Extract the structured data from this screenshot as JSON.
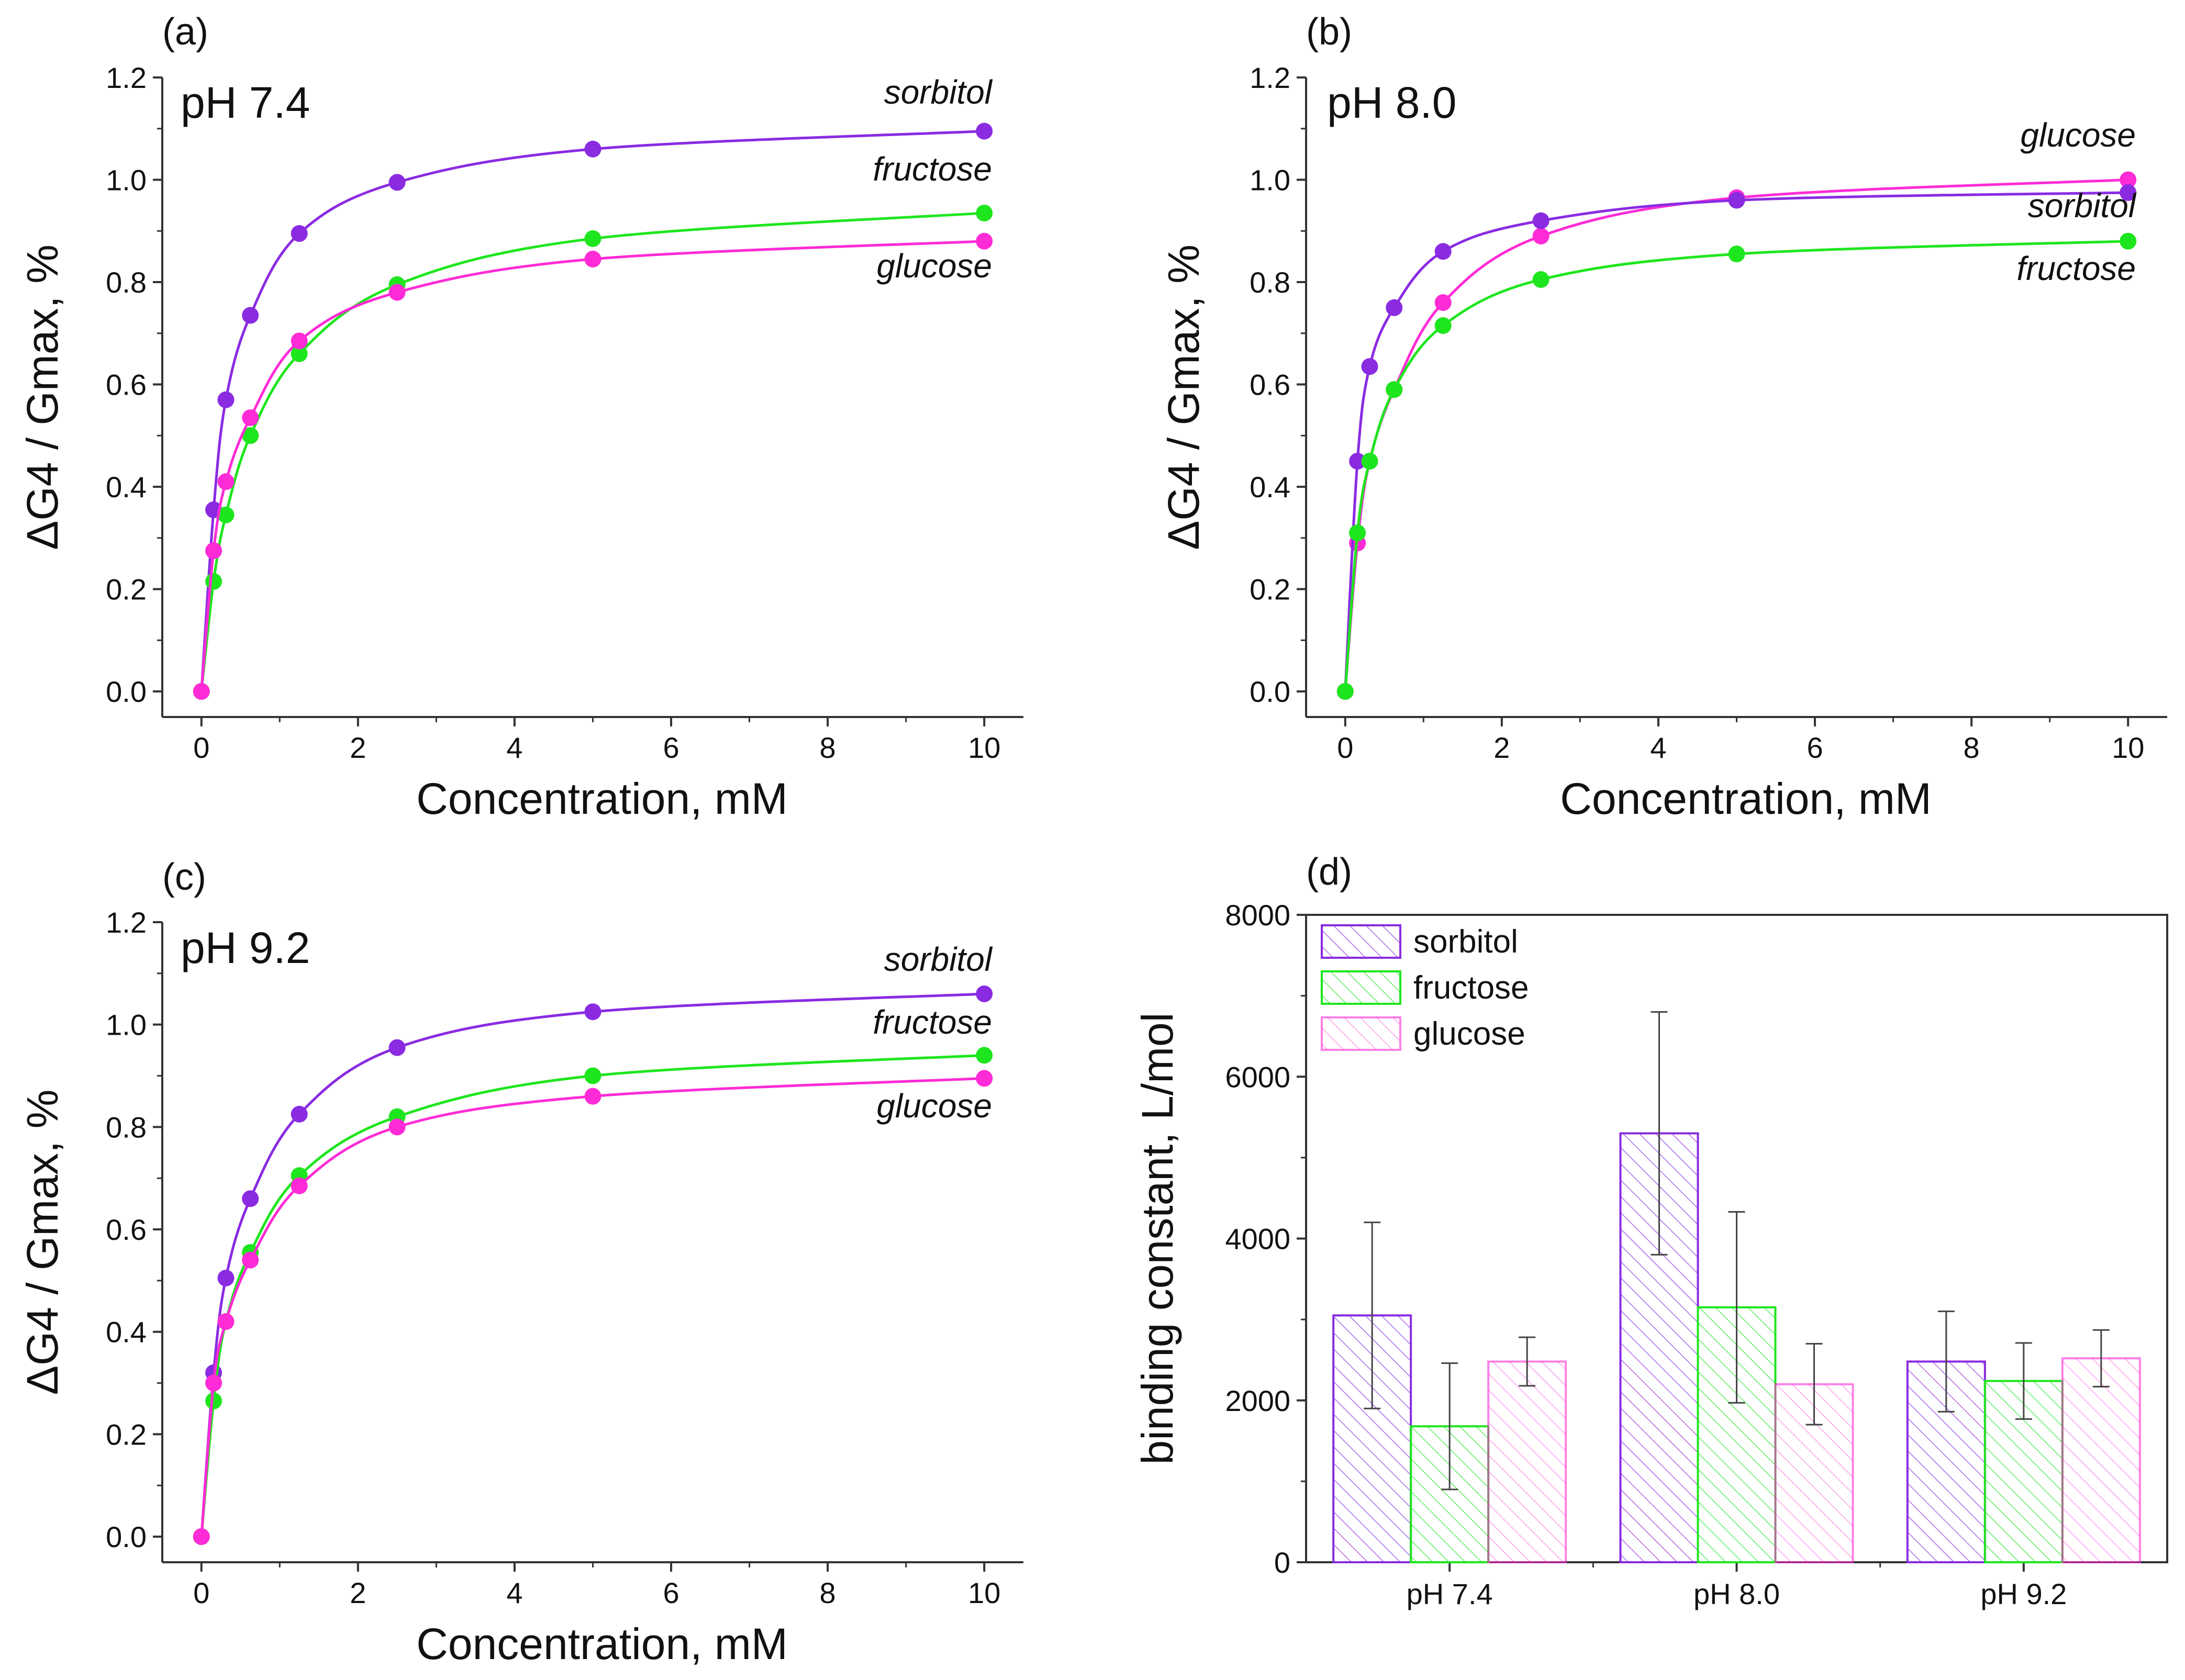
{
  "figure": {
    "panels": [
      {
        "label": "(a)",
        "ph_label": "pH 7.4"
      },
      {
        "label": "(b)",
        "ph_label": "pH 8.0"
      },
      {
        "label": "(c)",
        "ph_label": "pH 9.2"
      },
      {
        "label": "(d)"
      }
    ]
  },
  "chart_data": [
    {
      "type": "scatter",
      "panel": "(a)",
      "title": "pH 7.4",
      "xlabel": "Concentration, mM",
      "ylabel": "ΔG4 / Gmax, %",
      "xlim": [
        -0.5,
        10.5
      ],
      "ylim": [
        -0.05,
        1.2
      ],
      "xticks": [
        "0",
        "2",
        "4",
        "6",
        "8",
        "10"
      ],
      "yticks": [
        "0.0",
        "0.2",
        "0.4",
        "0.6",
        "0.8",
        "1.0",
        "1.2"
      ],
      "x": [
        0,
        0.156,
        0.3125,
        0.625,
        1.25,
        2.5,
        5,
        10
      ],
      "series": [
        {
          "name": "sorbitol",
          "color": "#8a2be2",
          "values": [
            0,
            0.355,
            0.57,
            0.735,
            0.895,
            0.995,
            1.06,
            1.095
          ]
        },
        {
          "name": "fructose",
          "color": "#1ee61e",
          "values": [
            0,
            0.215,
            0.345,
            0.5,
            0.66,
            0.795,
            0.885,
            0.935
          ]
        },
        {
          "name": "glucose",
          "color": "#ff2bd6",
          "values": [
            0,
            0.275,
            0.41,
            0.535,
            0.685,
            0.78,
            0.845,
            0.88
          ]
        }
      ]
    },
    {
      "type": "scatter",
      "panel": "(b)",
      "title": "pH 8.0",
      "xlabel": "Concentration, mM",
      "ylabel": "ΔG4 / Gmax, %",
      "xlim": [
        -0.5,
        10.5
      ],
      "ylim": [
        -0.05,
        1.2
      ],
      "xticks": [
        "0",
        "2",
        "4",
        "6",
        "8",
        "10"
      ],
      "yticks": [
        "0.0",
        "0.2",
        "0.4",
        "0.6",
        "0.8",
        "1.0",
        "1.2"
      ],
      "x": [
        0,
        0.156,
        0.3125,
        0.625,
        1.25,
        2.5,
        5,
        10
      ],
      "series": [
        {
          "name": "glucose",
          "color": "#ff2bd6",
          "values": [
            0,
            0.29,
            0.45,
            0.59,
            0.76,
            0.89,
            0.965,
            1.0
          ]
        },
        {
          "name": "sorbitol",
          "color": "#8a2be2",
          "values": [
            0,
            0.45,
            0.635,
            0.75,
            0.86,
            0.92,
            0.96,
            0.975
          ]
        },
        {
          "name": "fructose",
          "color": "#1ee61e",
          "values": [
            0,
            0.31,
            0.45,
            0.59,
            0.715,
            0.805,
            0.855,
            0.88
          ]
        }
      ]
    },
    {
      "type": "scatter",
      "panel": "(c)",
      "title": "pH 9.2",
      "xlabel": "Concentration, mM",
      "ylabel": "ΔG4 / Gmax, %",
      "xlim": [
        -0.5,
        10.5
      ],
      "ylim": [
        -0.05,
        1.2
      ],
      "xticks": [
        "0",
        "2",
        "4",
        "6",
        "8",
        "10"
      ],
      "yticks": [
        "0.0",
        "0.2",
        "0.4",
        "0.6",
        "0.8",
        "1.0",
        "1.2"
      ],
      "x": [
        0,
        0.156,
        0.3125,
        0.625,
        1.25,
        2.5,
        5,
        10
      ],
      "series": [
        {
          "name": "sorbitol",
          "color": "#8a2be2",
          "values": [
            0,
            0.32,
            0.505,
            0.66,
            0.825,
            0.955,
            1.025,
            1.06
          ]
        },
        {
          "name": "fructose",
          "color": "#1ee61e",
          "values": [
            0,
            0.265,
            0.42,
            0.555,
            0.705,
            0.82,
            0.9,
            0.94
          ]
        },
        {
          "name": "glucose",
          "color": "#ff2bd6",
          "values": [
            0,
            0.3,
            0.42,
            0.54,
            0.685,
            0.8,
            0.86,
            0.895
          ]
        }
      ]
    },
    {
      "type": "bar",
      "panel": "(d)",
      "ylabel": "binding constant, L/mol",
      "ylim": [
        0,
        8000
      ],
      "yticks": [
        "0",
        "2000",
        "4000",
        "6000",
        "8000"
      ],
      "categories": [
        "pH 7.4",
        "pH 8.0",
        "pH 9.2"
      ],
      "legend_position": "top-left",
      "series": [
        {
          "name": "sorbitol",
          "color": "#8a2be2",
          "values": [
            3050,
            5300,
            2480
          ],
          "errors": [
            1150,
            1500,
            620
          ]
        },
        {
          "name": "fructose",
          "color": "#1ee61e",
          "values": [
            1680,
            3150,
            2240
          ],
          "errors": [
            780,
            1180,
            470
          ]
        },
        {
          "name": "glucose",
          "color": "#ff2bd6",
          "values": [
            2480,
            2200,
            2520
          ],
          "errors": [
            300,
            500,
            350
          ]
        }
      ]
    }
  ]
}
